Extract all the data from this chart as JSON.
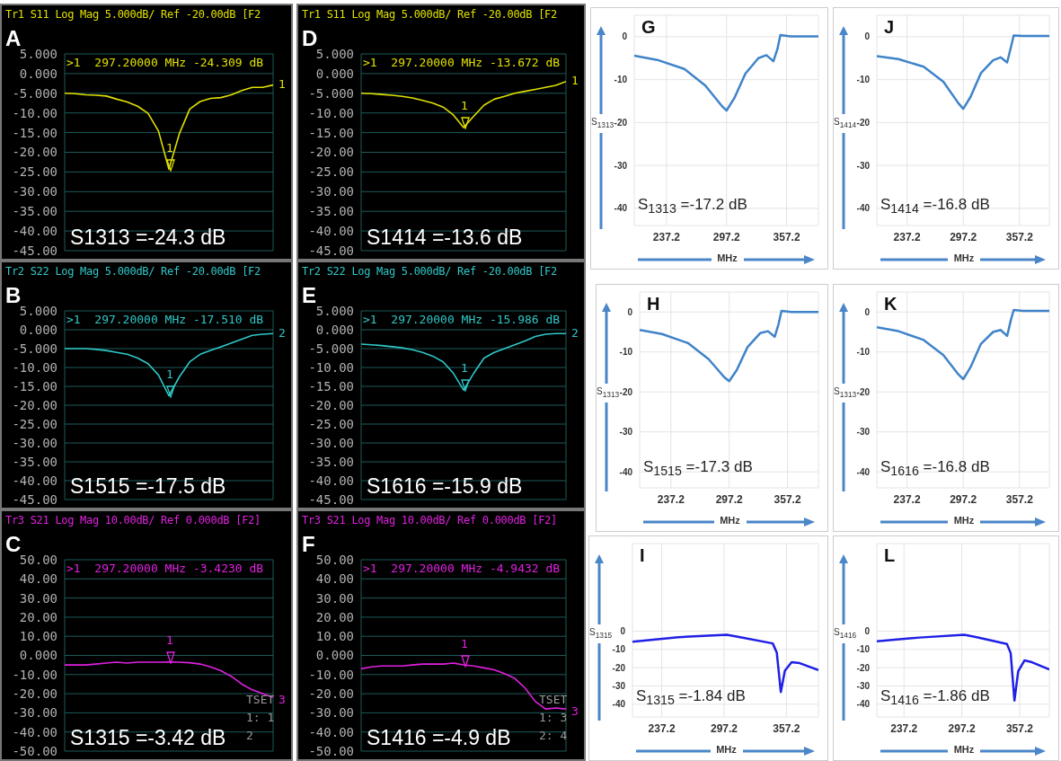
{
  "chart_data": [
    {
      "type": "line",
      "title": "Tr1 S11 Log Mag 5.000dB/ Ref -20.00dB [F2",
      "subtitle": ">1  297.20000 MHz -24.309 dB",
      "categories": [
        null,
        null,
        null,
        null,
        null,
        null,
        null,
        null,
        null,
        null,
        null,
        null,
        null,
        null,
        null,
        null,
        null,
        null,
        null,
        null,
        null
      ],
      "series": [
        {
          "color": "#e0e000",
          "values": [
            -5.0,
            -5.1,
            -5.4,
            -5.5,
            -5.7,
            -6.5,
            -7.2,
            -8.3,
            -10.1,
            -14.6,
            -24.3,
            -15.3,
            -9.0,
            -7.1,
            -6.3,
            -6.1,
            -5.4,
            -4.3,
            -3.5,
            -3.5,
            -2.9
          ]
        }
      ],
      "ylim": [
        -45,
        5
      ],
      "yticks": [
        {
          "value": 5,
          "label": "5.000"
        },
        {
          "value": 0,
          "label": "0.000"
        },
        {
          "value": -5,
          "label": "-5.000"
        },
        {
          "value": -10,
          "label": "-10.00"
        },
        {
          "value": -15,
          "label": "-15.00"
        },
        {
          "value": -20,
          "label": "-20.00"
        },
        {
          "value": -25,
          "label": "-25.00"
        },
        {
          "value": -30,
          "label": "-30.00"
        },
        {
          "value": -35,
          "label": "-35.00"
        },
        {
          "value": -40,
          "label": "-40.00"
        },
        {
          "value": -45,
          "label": "-45.00"
        }
      ],
      "grid": true,
      "tick_labels": "y",
      "annotations": [
        "A",
        "S1313 =-24.3 dB",
        "1",
        "1"
      ]
    },
    {
      "type": "line",
      "title": "Tr1 S11 Log Mag 5.000dB/ Ref -20.00dB [F2",
      "subtitle": ">1  297.20000 MHz -13.672 dB",
      "categories": [
        null,
        null,
        null,
        null,
        null,
        null,
        null,
        null,
        null,
        null,
        null,
        null,
        null,
        null,
        null,
        null,
        null,
        null,
        null,
        null,
        null
      ],
      "series": [
        {
          "color": "#e0e000",
          "values": [
            -5.0,
            -5.1,
            -5.3,
            -5.5,
            -5.8,
            -6.2,
            -6.8,
            -7.5,
            -8.5,
            -10.5,
            -13.7,
            -10.8,
            -8.0,
            -6.5,
            -5.8,
            -5.0,
            -4.5,
            -4.0,
            -3.5,
            -3.0,
            -2.0
          ]
        }
      ],
      "ylim": [
        -45,
        5
      ],
      "yticks": [
        {
          "value": 5,
          "label": "5.000"
        },
        {
          "value": 0,
          "label": "0.000"
        },
        {
          "value": -5,
          "label": "-5.000"
        },
        {
          "value": -10,
          "label": "-10.00"
        },
        {
          "value": -15,
          "label": "-15.00"
        },
        {
          "value": -20,
          "label": "-20.00"
        },
        {
          "value": -25,
          "label": "-25.00"
        },
        {
          "value": -30,
          "label": "-30.00"
        },
        {
          "value": -35,
          "label": "-35.00"
        },
        {
          "value": -40,
          "label": "-40.00"
        },
        {
          "value": -45,
          "label": "-45.00"
        }
      ],
      "grid": true,
      "tick_labels": "y",
      "annotations": [
        "D",
        "S1414 =-13.6 dB",
        "1",
        "1"
      ]
    },
    {
      "type": "line",
      "x": [
        205,
        228,
        255,
        276,
        292,
        297.2,
        305,
        316,
        329,
        337,
        344,
        348,
        351,
        361,
        389
      ],
      "series": [
        {
          "color": "#3f83c9",
          "values": [
            -4.4,
            -5.4,
            -7.5,
            -11.4,
            -16,
            -17.2,
            -14.3,
            -8.6,
            -5,
            -4.3,
            -5.7,
            -2.9,
            0.4,
            0.1,
            0.1
          ]
        }
      ],
      "xlim": [
        205,
        389
      ],
      "xticks": [
        237.2,
        297.2,
        357.2
      ],
      "ylim": [
        -44,
        5
      ],
      "yticks": [
        0,
        -10,
        -20,
        -30,
        -40
      ],
      "xlabel": "MHz",
      "ylabel": "S$_{1313}$",
      "grid": true,
      "annotations": [
        "G",
        "S$_{1313}$ =-17.2 dB"
      ]
    },
    {
      "type": "line",
      "x": [
        205,
        228,
        255,
        276,
        292,
        297.2,
        305,
        316,
        329,
        337,
        344,
        348,
        351,
        361,
        389
      ],
      "series": [
        {
          "color": "#3f83c9",
          "values": [
            -4.5,
            -5.2,
            -7,
            -10.5,
            -15.5,
            -16.8,
            -14,
            -8.5,
            -5.5,
            -4.8,
            -6,
            -2.5,
            0.3,
            0.2,
            0.2
          ]
        }
      ],
      "xlim": [
        205,
        389
      ],
      "xticks": [
        237.2,
        297.2,
        357.2
      ],
      "ylim": [
        -44,
        5
      ],
      "yticks": [
        0,
        -10,
        -20,
        -30,
        -40
      ],
      "xlabel": "MHz",
      "ylabel": "S$_{1414}$",
      "grid": true,
      "annotations": [
        "J",
        "S$_{1414}$ =-16.8 dB"
      ]
    },
    {
      "type": "line",
      "title": "Tr2 S22 Log Mag 5.000dB/ Ref -20.00dB [F2",
      "subtitle": ">1  297.20000 MHz -17.510 dB",
      "categories": [
        null,
        null,
        null,
        null,
        null,
        null,
        null,
        null,
        null,
        null,
        null,
        null,
        null,
        null,
        null,
        null,
        null,
        null,
        null,
        null,
        null
      ],
      "series": [
        {
          "color": "#30c8c8",
          "values": [
            -5.0,
            -5.0,
            -5.0,
            -5.2,
            -5.5,
            -6.0,
            -6.5,
            -7.5,
            -9.0,
            -12.0,
            -17.5,
            -12.5,
            -8.5,
            -6.5,
            -5.5,
            -4.5,
            -3.5,
            -2.5,
            -1.5,
            -1.2,
            -1.0
          ]
        }
      ],
      "ylim": [
        -45,
        5
      ],
      "yticks": [
        {
          "value": 5,
          "label": "5.000"
        },
        {
          "value": 0,
          "label": "0.000"
        },
        {
          "value": -5,
          "label": "-5.000"
        },
        {
          "value": -10,
          "label": "-10.00"
        },
        {
          "value": -15,
          "label": "-15.00"
        },
        {
          "value": -20,
          "label": "-20.00"
        },
        {
          "value": -25,
          "label": "-25.00"
        },
        {
          "value": -30,
          "label": "-30.00"
        },
        {
          "value": -35,
          "label": "-35.00"
        },
        {
          "value": -40,
          "label": "-40.00"
        },
        {
          "value": -45,
          "label": "-45.00"
        }
      ],
      "grid": true,
      "tick_labels": "y",
      "annotations": [
        "B",
        "S1515 =-17.5 dB",
        "1",
        "2"
      ]
    },
    {
      "type": "line",
      "title": "Tr2 S22 Log Mag 5.000dB/ Ref -20.00dB [F2",
      "subtitle": ">1  297.20000 MHz -15.986 dB",
      "categories": [
        null,
        null,
        null,
        null,
        null,
        null,
        null,
        null,
        null,
        null,
        null,
        null,
        null,
        null,
        null,
        null,
        null,
        null,
        null,
        null,
        null
      ],
      "series": [
        {
          "color": "#30c8c8",
          "values": [
            -3.8,
            -4.0,
            -4.2,
            -4.5,
            -4.8,
            -5.3,
            -6.0,
            -7.0,
            -8.5,
            -11.5,
            -16.0,
            -11.5,
            -7.5,
            -6.0,
            -5.0,
            -4.0,
            -3.0,
            -1.8,
            -1.2,
            -1.0,
            -1.0
          ]
        }
      ],
      "ylim": [
        -45,
        5
      ],
      "yticks": [
        {
          "value": 5,
          "label": "5.000"
        },
        {
          "value": 0,
          "label": "0.000"
        },
        {
          "value": -5,
          "label": "-5.000"
        },
        {
          "value": -10,
          "label": "-10.00"
        },
        {
          "value": -15,
          "label": "-15.00"
        },
        {
          "value": -20,
          "label": "-20.00"
        },
        {
          "value": -25,
          "label": "-25.00"
        },
        {
          "value": -30,
          "label": "-30.00"
        },
        {
          "value": -35,
          "label": "-35.00"
        },
        {
          "value": -40,
          "label": "-40.00"
        },
        {
          "value": -45,
          "label": "-45.00"
        }
      ],
      "grid": true,
      "tick_labels": "y",
      "annotations": [
        "E",
        "S1616 =-15.9 dB",
        "1",
        "2"
      ]
    },
    {
      "type": "line",
      "x": [
        205,
        228,
        255,
        276,
        292,
        297.2,
        305,
        316,
        329,
        337,
        344,
        348,
        351,
        361,
        389
      ],
      "series": [
        {
          "color": "#3f83c9",
          "values": [
            -4.5,
            -5.5,
            -7.8,
            -11.8,
            -16.3,
            -17.3,
            -14.5,
            -8.8,
            -5.3,
            -4.8,
            -6.2,
            -3,
            0.3,
            0,
            0
          ]
        }
      ],
      "xlim": [
        205,
        389
      ],
      "xticks": [
        237.2,
        297.2,
        357.2
      ],
      "ylim": [
        -44,
        5
      ],
      "yticks": [
        0,
        -10,
        -20,
        -30,
        -40
      ],
      "xlabel": "MHz",
      "ylabel": "S$_{1313}$",
      "grid": true,
      "annotations": [
        "H",
        "S$_{1515}$ =-17.3 dB"
      ]
    },
    {
      "type": "line",
      "x": [
        205,
        228,
        255,
        276,
        292,
        297.2,
        305,
        316,
        329,
        337,
        344,
        348,
        351,
        361,
        389
      ],
      "series": [
        {
          "color": "#3f83c9",
          "values": [
            -3.8,
            -4.8,
            -7,
            -10.8,
            -15.6,
            -16.8,
            -13.8,
            -8,
            -5,
            -4.5,
            -6,
            -2,
            0.5,
            0.3,
            0.3
          ]
        }
      ],
      "xlim": [
        205,
        389
      ],
      "xticks": [
        237.2,
        297.2,
        357.2
      ],
      "ylim": [
        -44,
        5
      ],
      "yticks": [
        0,
        -10,
        -20,
        -30,
        -40
      ],
      "xlabel": "MHz",
      "ylabel": "S$_{1313}$",
      "grid": true,
      "annotations": [
        "K",
        "S$_{1616}$ =-16.8 dB"
      ]
    },
    {
      "type": "line",
      "title": "Tr3 S21 Log Mag 10.00dB/ Ref 0.000dB [F2]",
      "subtitle": ">1  297.20000 MHz -3.4230 dB",
      "categories": [
        null,
        null,
        null,
        null,
        null,
        null,
        null,
        null,
        null,
        null,
        null,
        null,
        null,
        null,
        null,
        null,
        null,
        null,
        null,
        null,
        null
      ],
      "series": [
        {
          "color": "#e020e0",
          "values": [
            -5,
            -5,
            -5,
            -4.5,
            -4,
            -3.5,
            -4,
            -3.5,
            -3.5,
            -3.5,
            -3.4,
            -3.5,
            -3.8,
            -4.5,
            -6,
            -8,
            -11,
            -15,
            -18,
            -20,
            -22
          ]
        }
      ],
      "ylim": [
        -50,
        50
      ],
      "yticks": [
        {
          "value": 50,
          "label": "50.00"
        },
        {
          "value": 40,
          "label": "40.00"
        },
        {
          "value": 30,
          "label": "30.00"
        },
        {
          "value": 20,
          "label": "20.00"
        },
        {
          "value": 10,
          "label": "10.00"
        },
        {
          "value": 0,
          "label": "0.000"
        },
        {
          "value": -10,
          "label": "-10.00"
        },
        {
          "value": -20,
          "label": "-20.00"
        },
        {
          "value": -30,
          "label": "-30.00"
        },
        {
          "value": -40,
          "label": "-40.00"
        },
        {
          "value": -50,
          "label": "-50.00"
        }
      ],
      "grid": true,
      "tick_labels": "y",
      "annotations": [
        "C",
        "S1315 =-3.42 dB",
        "1",
        "3",
        "TSET",
        "1: 1",
        "2"
      ]
    },
    {
      "type": "line",
      "title": "Tr3 S21 Log Mag 10.00dB/ Ref 0.000dB [F2]",
      "subtitle": ">1  297.20000 MHz -4.9432 dB",
      "categories": [
        null,
        null,
        null,
        null,
        null,
        null,
        null,
        null,
        null,
        null,
        null,
        null,
        null,
        null,
        null,
        null,
        null,
        null,
        null,
        null,
        null
      ],
      "series": [
        {
          "color": "#e020e0",
          "values": [
            -7,
            -6,
            -5.5,
            -5.5,
            -5.5,
            -5,
            -4.5,
            -4.5,
            -4.5,
            -4,
            -4.9,
            -5.5,
            -6.5,
            -7.5,
            -9.5,
            -12,
            -17,
            -24,
            -28,
            -27.5,
            -28
          ]
        }
      ],
      "ylim": [
        -50,
        50
      ],
      "yticks": [
        {
          "value": 50,
          "label": "50.00"
        },
        {
          "value": 40,
          "label": "40.00"
        },
        {
          "value": 30,
          "label": "30.00"
        },
        {
          "value": 20,
          "label": "20.00"
        },
        {
          "value": 10,
          "label": "10.00"
        },
        {
          "value": 0,
          "label": "0.000"
        },
        {
          "value": -10,
          "label": "-10.00"
        },
        {
          "value": -20,
          "label": "-20.00"
        },
        {
          "value": -30,
          "label": "-30.00"
        },
        {
          "value": -40,
          "label": "-40.00"
        },
        {
          "value": -50,
          "label": "-50.00"
        }
      ],
      "grid": true,
      "tick_labels": "y",
      "annotations": [
        "F",
        "S1416 =-4.9 dB",
        "1",
        "3",
        "TSET",
        "1: 3",
        "2: 4"
      ]
    },
    {
      "type": "line",
      "x": [
        209,
        253,
        299.8,
        312.8,
        344,
        347.9,
        351.8,
        355.7,
        362.2,
        370,
        388
      ],
      "series": [
        {
          "color": "#1f1fe6",
          "values": [
            -5.8,
            -3.3,
            -2,
            -3.3,
            -6.7,
            -11.7,
            -33.3,
            -21.7,
            -17,
            -17.5,
            -21.3
          ]
        }
      ],
      "xlim": [
        209,
        388
      ],
      "xticks": [
        237.2,
        297.2,
        357.2
      ],
      "ylim": [
        -47,
        48
      ],
      "yticks": [
        0,
        -10,
        -20,
        -30,
        -40
      ],
      "xlabel": "MHz",
      "ylabel": "S$_{1315}$",
      "grid": true,
      "annotations": [
        "I",
        "S$_{1315}$ =-1.84 dB"
      ]
    },
    {
      "type": "line",
      "x": [
        209,
        253,
        299.8,
        312.8,
        344,
        347.9,
        351.8,
        355.7,
        362.2,
        370,
        388
      ],
      "series": [
        {
          "color": "#1f1fe6",
          "values": [
            -5.5,
            -3.5,
            -2,
            -3.3,
            -7,
            -12,
            -38,
            -22,
            -16,
            -17,
            -21
          ]
        }
      ],
      "xlim": [
        209,
        388
      ],
      "xticks": [
        237.2,
        297.2,
        357.2
      ],
      "ylim": [
        -47,
        48
      ],
      "yticks": [
        0,
        -10,
        -20,
        -30,
        -40
      ],
      "xlabel": "MHz",
      "ylabel": "S$_{1416}$",
      "grid": true,
      "annotations": [
        "L",
        "S$_{1416}$ =-1.86 dB"
      ]
    }
  ]
}
